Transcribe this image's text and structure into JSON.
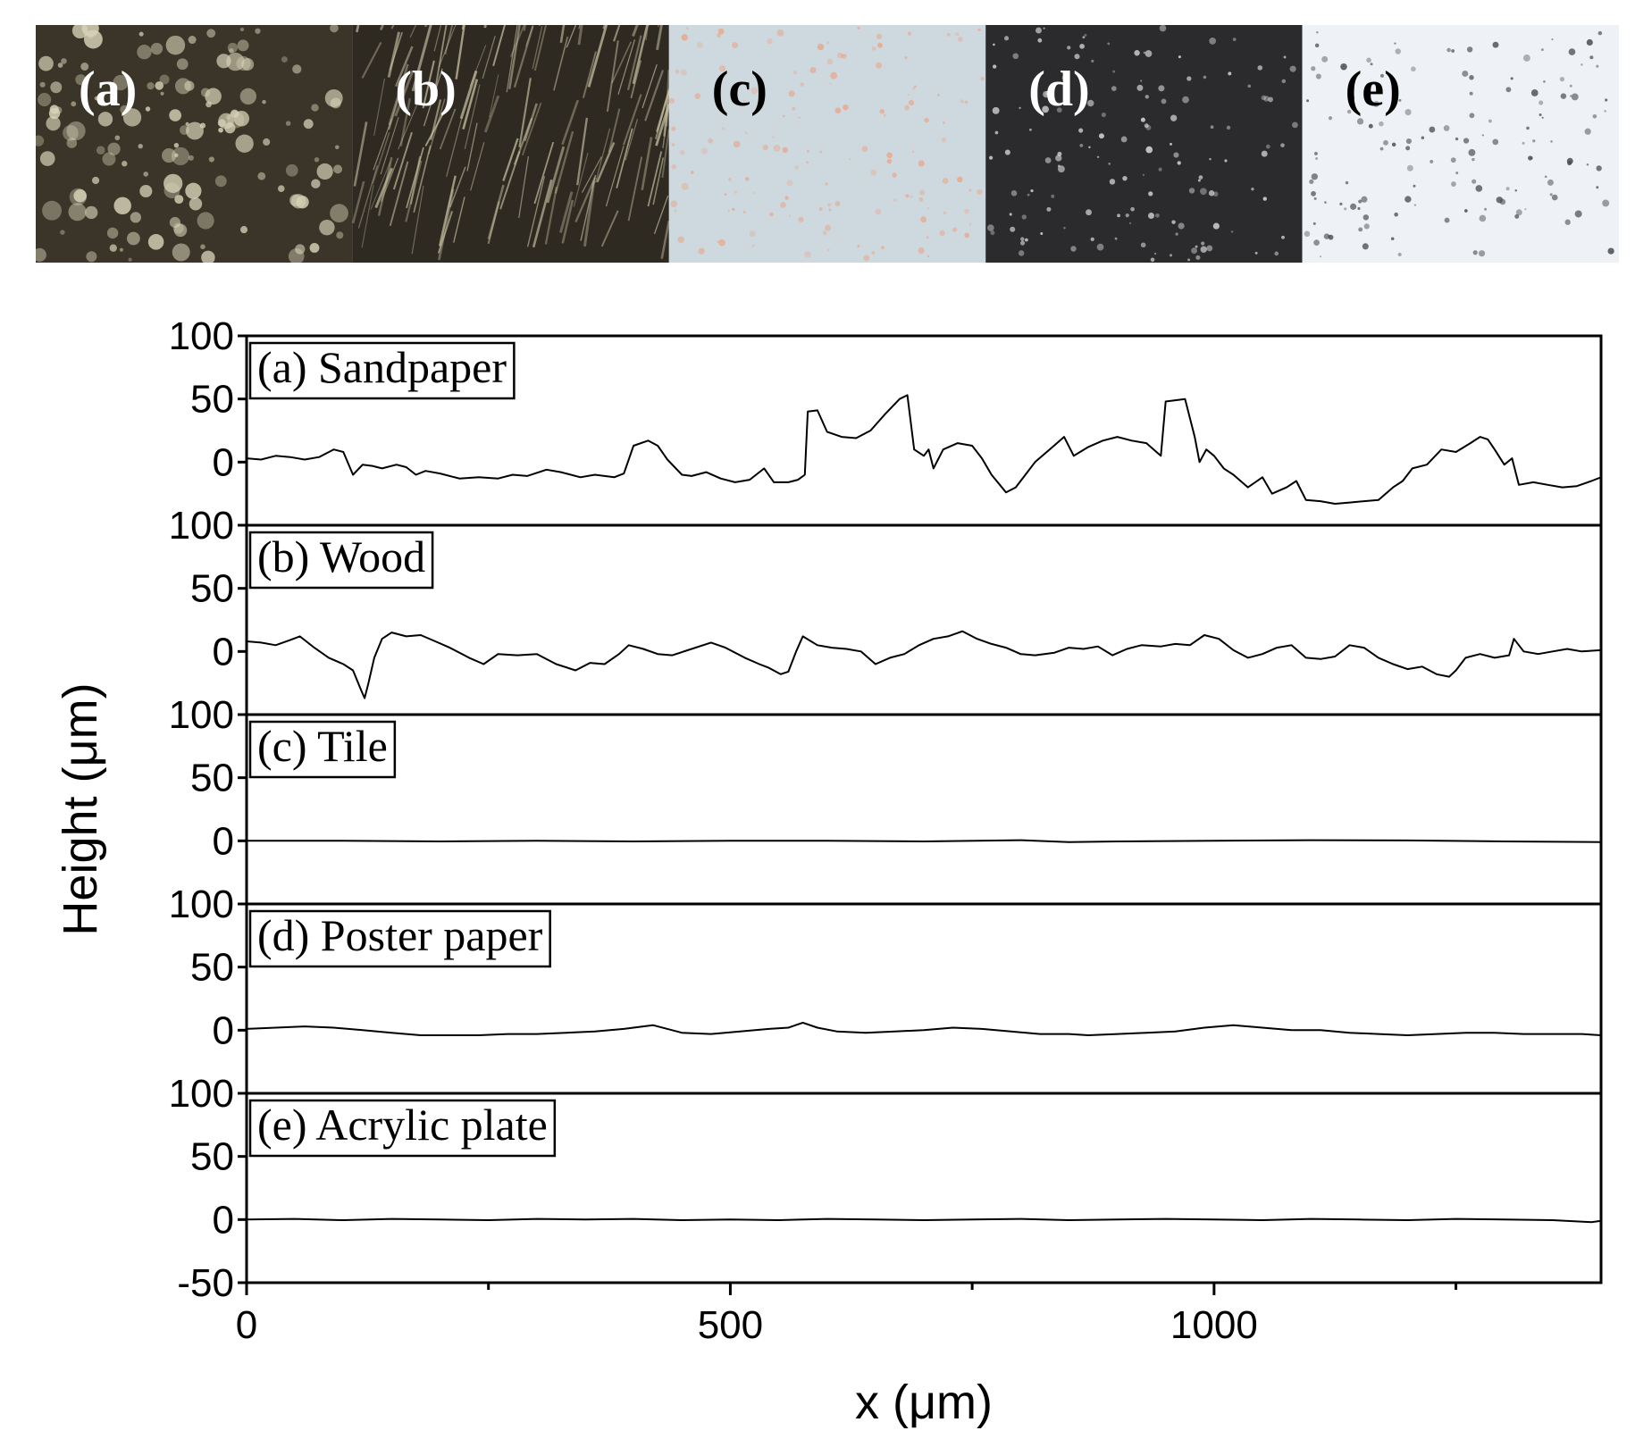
{
  "photos": [
    {
      "label": "(a)",
      "tone": "#3a3528",
      "accent": "#d8d2b8",
      "label_color": "#ffffff"
    },
    {
      "label": "(b)",
      "tone": "#2e2a22",
      "accent": "#c9c1a2",
      "label_color": "#ffffff"
    },
    {
      "label": "(c)",
      "tone": "#cdd9de",
      "accent": "#e8a88e",
      "label_color": "#000000"
    },
    {
      "label": "(d)",
      "tone": "#2b2b2e",
      "accent": "#dcdcdc",
      "label_color": "#ffffff"
    },
    {
      "label": "(e)",
      "tone": "#eef1f5",
      "accent": "#4a4a4a",
      "label_color": "#000000"
    }
  ],
  "chart_data": {
    "type": "line",
    "xlabel": "x (μm)",
    "ylabel": "Height (μm)",
    "xlim": [
      0,
      1400
    ],
    "x_ticks": [
      0,
      500,
      1000
    ],
    "x_minor_ticks": [
      250,
      750,
      1250
    ],
    "line_color": "#000000",
    "panels": [
      {
        "label": "(a) Sandpaper",
        "ylim": [
          -50,
          100
        ],
        "y_ticks": [
          100,
          50,
          0
        ],
        "points": [
          [
            0,
            3
          ],
          [
            15,
            2
          ],
          [
            30,
            5
          ],
          [
            45,
            4
          ],
          [
            60,
            2
          ],
          [
            75,
            4
          ],
          [
            90,
            10
          ],
          [
            100,
            8
          ],
          [
            110,
            -10
          ],
          [
            120,
            -2
          ],
          [
            130,
            -3
          ],
          [
            140,
            -5
          ],
          [
            155,
            -2
          ],
          [
            165,
            -4
          ],
          [
            175,
            -10
          ],
          [
            185,
            -7
          ],
          [
            200,
            -9
          ],
          [
            220,
            -13
          ],
          [
            240,
            -12
          ],
          [
            260,
            -13
          ],
          [
            275,
            -10
          ],
          [
            290,
            -11
          ],
          [
            310,
            -6
          ],
          [
            325,
            -8
          ],
          [
            345,
            -12
          ],
          [
            360,
            -10
          ],
          [
            380,
            -12
          ],
          [
            390,
            -9
          ],
          [
            400,
            13
          ],
          [
            415,
            17
          ],
          [
            425,
            13
          ],
          [
            435,
            2
          ],
          [
            450,
            -10
          ],
          [
            460,
            -11
          ],
          [
            475,
            -8
          ],
          [
            490,
            -13
          ],
          [
            505,
            -16
          ],
          [
            520,
            -14
          ],
          [
            535,
            -5
          ],
          [
            545,
            -16
          ],
          [
            560,
            -16
          ],
          [
            570,
            -14
          ],
          [
            577,
            -10
          ],
          [
            580,
            40
          ],
          [
            590,
            41
          ],
          [
            600,
            24
          ],
          [
            615,
            20
          ],
          [
            630,
            19
          ],
          [
            645,
            25
          ],
          [
            660,
            38
          ],
          [
            675,
            50
          ],
          [
            683,
            53
          ],
          [
            690,
            10
          ],
          [
            700,
            5
          ],
          [
            705,
            10
          ],
          [
            710,
            -5
          ],
          [
            720,
            10
          ],
          [
            735,
            15
          ],
          [
            750,
            13
          ],
          [
            760,
            3
          ],
          [
            770,
            -10
          ],
          [
            785,
            -24
          ],
          [
            795,
            -20
          ],
          [
            805,
            -10
          ],
          [
            815,
            0
          ],
          [
            830,
            10
          ],
          [
            845,
            20
          ],
          [
            855,
            5
          ],
          [
            870,
            12
          ],
          [
            885,
            17
          ],
          [
            900,
            20
          ],
          [
            915,
            17
          ],
          [
            930,
            15
          ],
          [
            945,
            5
          ],
          [
            950,
            48
          ],
          [
            960,
            49
          ],
          [
            970,
            50
          ],
          [
            980,
            20
          ],
          [
            985,
            0
          ],
          [
            992,
            10
          ],
          [
            1000,
            5
          ],
          [
            1010,
            -5
          ],
          [
            1020,
            -10
          ],
          [
            1035,
            -20
          ],
          [
            1050,
            -12
          ],
          [
            1060,
            -25
          ],
          [
            1075,
            -20
          ],
          [
            1085,
            -15
          ],
          [
            1095,
            -30
          ],
          [
            1110,
            -31
          ],
          [
            1125,
            -33
          ],
          [
            1140,
            -32
          ],
          [
            1155,
            -31
          ],
          [
            1170,
            -30
          ],
          [
            1185,
            -20
          ],
          [
            1195,
            -15
          ],
          [
            1205,
            -5
          ],
          [
            1220,
            -2
          ],
          [
            1235,
            10
          ],
          [
            1250,
            8
          ],
          [
            1265,
            15
          ],
          [
            1275,
            20
          ],
          [
            1283,
            18
          ],
          [
            1290,
            10
          ],
          [
            1300,
            -2
          ],
          [
            1308,
            3
          ],
          [
            1315,
            -18
          ],
          [
            1330,
            -16
          ],
          [
            1345,
            -18
          ],
          [
            1360,
            -20
          ],
          [
            1375,
            -19
          ],
          [
            1390,
            -15
          ],
          [
            1400,
            -12
          ]
        ]
      },
      {
        "label": "(b) Wood",
        "ylim": [
          -50,
          100
        ],
        "y_ticks": [
          100,
          50,
          0
        ],
        "points": [
          [
            0,
            8
          ],
          [
            15,
            7
          ],
          [
            30,
            5
          ],
          [
            45,
            9
          ],
          [
            55,
            12
          ],
          [
            70,
            3
          ],
          [
            85,
            -5
          ],
          [
            100,
            -10
          ],
          [
            110,
            -15
          ],
          [
            118,
            -30
          ],
          [
            122,
            -37
          ],
          [
            126,
            -25
          ],
          [
            132,
            -5
          ],
          [
            140,
            10
          ],
          [
            150,
            15
          ],
          [
            165,
            12
          ],
          [
            180,
            13
          ],
          [
            195,
            8
          ],
          [
            210,
            3
          ],
          [
            230,
            -5
          ],
          [
            245,
            -10
          ],
          [
            260,
            -2
          ],
          [
            280,
            -3
          ],
          [
            300,
            -2
          ],
          [
            320,
            -10
          ],
          [
            340,
            -15
          ],
          [
            355,
            -9
          ],
          [
            370,
            -10
          ],
          [
            385,
            -2
          ],
          [
            395,
            5
          ],
          [
            410,
            2
          ],
          [
            425,
            -2
          ],
          [
            440,
            -3
          ],
          [
            460,
            2
          ],
          [
            480,
            7
          ],
          [
            495,
            3
          ],
          [
            515,
            -5
          ],
          [
            530,
            -10
          ],
          [
            540,
            -13
          ],
          [
            552,
            -18
          ],
          [
            560,
            -16
          ],
          [
            568,
            0
          ],
          [
            575,
            12
          ],
          [
            590,
            5
          ],
          [
            605,
            3
          ],
          [
            620,
            2
          ],
          [
            635,
            0
          ],
          [
            650,
            -10
          ],
          [
            665,
            -5
          ],
          [
            680,
            -2
          ],
          [
            695,
            5
          ],
          [
            710,
            10
          ],
          [
            725,
            12
          ],
          [
            740,
            16
          ],
          [
            755,
            10
          ],
          [
            770,
            6
          ],
          [
            785,
            3
          ],
          [
            800,
            -2
          ],
          [
            815,
            -3
          ],
          [
            835,
            -1
          ],
          [
            850,
            3
          ],
          [
            865,
            2
          ],
          [
            880,
            4
          ],
          [
            895,
            -3
          ],
          [
            910,
            2
          ],
          [
            925,
            5
          ],
          [
            945,
            4
          ],
          [
            960,
            6
          ],
          [
            975,
            5
          ],
          [
            990,
            13
          ],
          [
            1005,
            10
          ],
          [
            1020,
            1
          ],
          [
            1035,
            -5
          ],
          [
            1050,
            -2
          ],
          [
            1065,
            3
          ],
          [
            1080,
            5
          ],
          [
            1095,
            -5
          ],
          [
            1110,
            -6
          ],
          [
            1125,
            -4
          ],
          [
            1140,
            5
          ],
          [
            1155,
            3
          ],
          [
            1170,
            -5
          ],
          [
            1185,
            -10
          ],
          [
            1200,
            -14
          ],
          [
            1215,
            -12
          ],
          [
            1230,
            -18
          ],
          [
            1243,
            -20
          ],
          [
            1250,
            -15
          ],
          [
            1260,
            -5
          ],
          [
            1275,
            -2
          ],
          [
            1290,
            -5
          ],
          [
            1305,
            -3
          ],
          [
            1310,
            10
          ],
          [
            1320,
            0
          ],
          [
            1335,
            -2
          ],
          [
            1350,
            0
          ],
          [
            1365,
            2
          ],
          [
            1380,
            0
          ],
          [
            1400,
            1
          ]
        ]
      },
      {
        "label": "(c) Tile",
        "ylim": [
          -50,
          100
        ],
        "y_ticks": [
          100,
          50,
          0
        ],
        "points": [
          [
            0,
            0
          ],
          [
            100,
            0
          ],
          [
            200,
            -0.5
          ],
          [
            300,
            0
          ],
          [
            400,
            -0.5
          ],
          [
            500,
            0
          ],
          [
            600,
            0
          ],
          [
            700,
            -0.5
          ],
          [
            800,
            0.5
          ],
          [
            850,
            -1
          ],
          [
            900,
            -0.5
          ],
          [
            1000,
            0
          ],
          [
            1100,
            0.5
          ],
          [
            1200,
            0.3
          ],
          [
            1300,
            -0.5
          ],
          [
            1400,
            -1
          ]
        ]
      },
      {
        "label": "(d) Poster paper",
        "ylim": [
          -50,
          100
        ],
        "y_ticks": [
          100,
          50,
          0
        ],
        "points": [
          [
            0,
            1
          ],
          [
            30,
            2
          ],
          [
            60,
            3
          ],
          [
            90,
            2
          ],
          [
            120,
            0
          ],
          [
            150,
            -2
          ],
          [
            180,
            -4
          ],
          [
            210,
            -4
          ],
          [
            240,
            -4
          ],
          [
            270,
            -3
          ],
          [
            300,
            -3
          ],
          [
            330,
            -2
          ],
          [
            360,
            -1
          ],
          [
            390,
            1
          ],
          [
            420,
            4
          ],
          [
            450,
            -2
          ],
          [
            480,
            -3
          ],
          [
            510,
            -1
          ],
          [
            540,
            1
          ],
          [
            560,
            2
          ],
          [
            575,
            6
          ],
          [
            590,
            2
          ],
          [
            610,
            -1
          ],
          [
            640,
            -2
          ],
          [
            670,
            -1
          ],
          [
            700,
            0
          ],
          [
            730,
            2
          ],
          [
            760,
            1
          ],
          [
            790,
            -1
          ],
          [
            820,
            -3
          ],
          [
            850,
            -3
          ],
          [
            870,
            -4
          ],
          [
            900,
            -3
          ],
          [
            930,
            -2
          ],
          [
            960,
            -1
          ],
          [
            990,
            2
          ],
          [
            1020,
            4
          ],
          [
            1050,
            2
          ],
          [
            1080,
            0
          ],
          [
            1110,
            0
          ],
          [
            1140,
            -2
          ],
          [
            1170,
            -3
          ],
          [
            1200,
            -4
          ],
          [
            1230,
            -3
          ],
          [
            1260,
            -2
          ],
          [
            1290,
            -2
          ],
          [
            1320,
            -3
          ],
          [
            1350,
            -3
          ],
          [
            1380,
            -3
          ],
          [
            1400,
            -4
          ]
        ]
      },
      {
        "label": "(e) Acrylic plate",
        "ylim": [
          -50,
          100
        ],
        "y_ticks": [
          100,
          50,
          0,
          -50
        ],
        "points": [
          [
            0,
            0
          ],
          [
            50,
            0.5
          ],
          [
            100,
            -0.5
          ],
          [
            150,
            0.5
          ],
          [
            200,
            0
          ],
          [
            250,
            -0.5
          ],
          [
            300,
            0.5
          ],
          [
            350,
            0
          ],
          [
            400,
            0.5
          ],
          [
            450,
            -0.5
          ],
          [
            500,
            0
          ],
          [
            550,
            -0.5
          ],
          [
            600,
            0.5
          ],
          [
            650,
            0
          ],
          [
            700,
            -0.5
          ],
          [
            750,
            0
          ],
          [
            800,
            0.5
          ],
          [
            850,
            -0.5
          ],
          [
            900,
            0
          ],
          [
            950,
            0.5
          ],
          [
            1000,
            0
          ],
          [
            1050,
            -0.5
          ],
          [
            1100,
            0.5
          ],
          [
            1150,
            0
          ],
          [
            1200,
            -0.5
          ],
          [
            1250,
            0.5
          ],
          [
            1300,
            0
          ],
          [
            1350,
            -0.5
          ],
          [
            1390,
            -2
          ],
          [
            1400,
            -1
          ]
        ]
      }
    ]
  }
}
